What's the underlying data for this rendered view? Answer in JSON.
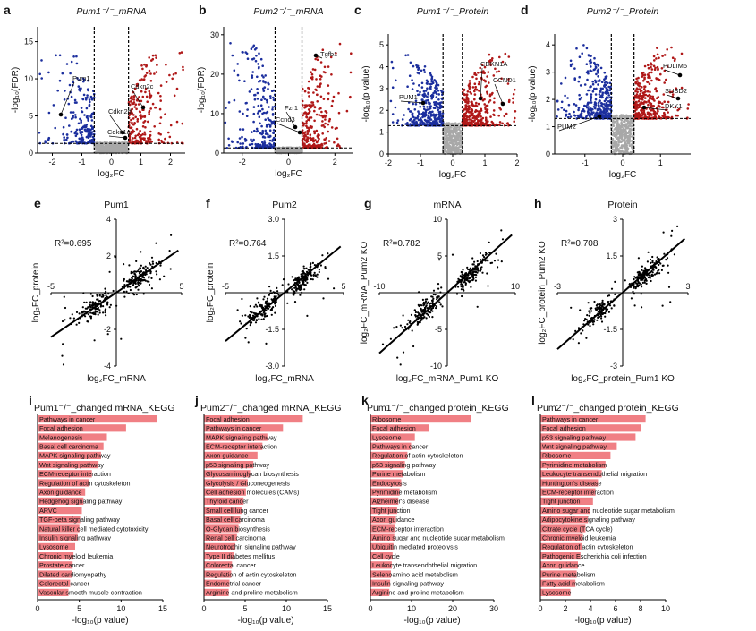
{
  "colors": {
    "up": "#b01818",
    "down": "#1c2f9e",
    "ns": "#a8a8a8",
    "bar": "#f07f84",
    "point": "#000000"
  },
  "volcano_panels": [
    {
      "letter": "a",
      "title": "Pum1⁻/⁻_mRNA",
      "xlabel": "log₂FC",
      "ylabel": "-log₁₀(FDR)",
      "xticks": [
        "-2",
        "-1",
        "0",
        "1",
        "2"
      ],
      "yticks": [
        "0",
        "5",
        "10",
        "15"
      ],
      "annotations": [
        {
          "text": "Pum1"
        },
        {
          "text": "Cdkn2d"
        },
        {
          "text": "Cdkn1a"
        },
        {
          "text": "Cdkn2c"
        }
      ]
    },
    {
      "letter": "b",
      "title": "Pum2⁻/⁻_mRNA",
      "xlabel": "log₂FC",
      "ylabel": "-log₁₀(FDR)",
      "xticks": [
        "-2",
        "0",
        "2"
      ],
      "yticks": [
        "0",
        "10",
        "20",
        "30"
      ],
      "annotations": [
        {
          "text": "Tgfb1"
        },
        {
          "text": "Fzr1"
        },
        {
          "text": "Ccnd3"
        }
      ]
    },
    {
      "letter": "c",
      "title": "Pum1⁻/⁻_Protein",
      "xlabel": "log₂FC",
      "ylabel": "-log₁₀(p value)",
      "xticks": [
        "-2",
        "-1",
        "0",
        "1",
        "2"
      ],
      "yticks": [
        "0",
        "1",
        "2",
        "3",
        "4",
        "5"
      ],
      "annotations": [
        {
          "text": "PUM1"
        },
        {
          "text": "CDKN1A"
        },
        {
          "text": "CCND1"
        }
      ]
    },
    {
      "letter": "d",
      "title": "Pum2⁻/⁻_Protein",
      "xlabel": "log₂FC",
      "ylabel": "-log₁₀(p value)",
      "xticks": [
        "-1",
        "0",
        "1"
      ],
      "yticks": [
        "0",
        "1",
        "2",
        "3",
        "4"
      ],
      "annotations": [
        {
          "text": "PDLIM5"
        },
        {
          "text": "SUSD2"
        },
        {
          "text": "DKK1"
        },
        {
          "text": "PUM2"
        }
      ]
    }
  ],
  "scatter_panels": [
    {
      "letter": "e",
      "title": "Pum1",
      "r2_text": "R²=0.695",
      "xlabel": "log₂FC_mRNA",
      "ylabel": "log₂FC_protein",
      "xmin": "-5",
      "xmax": "5",
      "ymax": "4",
      "ymid": "2",
      "ymidn": "-2",
      "ymin": "-4"
    },
    {
      "letter": "f",
      "title": "Pum2",
      "r2_text": "R²=0.764",
      "xlabel": "log₂FC_mRNA",
      "ylabel": "log₂FC_protein",
      "xmin": "-5",
      "xmax": "5",
      "ymax": "3.0",
      "ymid": "1.5",
      "ymidn": "-1.5",
      "ymin": "-3.0"
    },
    {
      "letter": "g",
      "title": "mRNA",
      "r2_text": "R²=0.782",
      "xlabel": "log₂FC_mRNA_Pum1 KO",
      "ylabel": "log₂FC_mRNA_Pum2 KO",
      "xmin": "-10",
      "xmax": "10",
      "ymax": "10",
      "ymid": "5",
      "ymidn": "-5",
      "ymin": "-10"
    },
    {
      "letter": "h",
      "title": "Protein",
      "r2_text": "R²=0.708",
      "xlabel": "log₂FC_protein_Pum1 KO",
      "ylabel": "log₂FC_protein_Pum2 KO",
      "xmin": "-3",
      "xmax": "3",
      "ymax": "3",
      "ymid": "1.5",
      "ymidn": "-1.5",
      "ymin": "-3"
    }
  ],
  "chart_data": [
    {
      "type": "bar",
      "panel": "i",
      "title": "Pum1⁻/⁻_changed mRNA_KEGG",
      "xlabel": "-log₁₀(p value)",
      "xlim": [
        0,
        15
      ],
      "xticks": [
        "0",
        "5",
        "10",
        "15"
      ],
      "categories": [
        "Pathways in cancer",
        "Focal adhesion",
        "Melanogenesis",
        "Basal cell carcinoma",
        "MAPK signaling pathway",
        "Wnt signaling pathway",
        "ECM-receptor interaction",
        "Regulation of actin cytoskeleton",
        "Axon guidance",
        "Hedgehog signaling pathway",
        "ARVC",
        "TGF-beta signaling pathway",
        "Natural killer cell mediated cytotoxicity",
        "Insulin signaling pathway",
        "Lysosome",
        "Chronic myeloid leukemia",
        "Prostate cancer",
        "Dilated cardiomyopathy",
        "Colorectal cancer",
        "Vascular smooth muscle contraction"
      ],
      "values": [
        14.3,
        10.6,
        8.3,
        7.9,
        7.6,
        7.3,
        6.5,
        6.2,
        5.7,
        5.5,
        5.3,
        5.1,
        5.0,
        4.8,
        4.5,
        4.3,
        4.2,
        4.1,
        3.9,
        3.7
      ]
    },
    {
      "type": "bar",
      "panel": "j",
      "title": "Pum2⁻/⁻_changed mRNA_KEGG",
      "xlabel": "-log₁₀(p value)",
      "xlim": [
        0,
        15
      ],
      "xticks": [
        "0",
        "5",
        "10",
        "15"
      ],
      "categories": [
        "Focal adhesion",
        "Pathways in cancer",
        "MAPK signaling pathway",
        "ECM-receptor interaction",
        "Axon guidance",
        "p53 signaling pathway",
        "Glycosaminoglycan biosynthesis",
        "Glycolysis / Gluconeogenesis",
        "Cell adhesion molecules (CAMs)",
        "Thyroid cancer",
        "Small cell lung cancer",
        "Basal cell carcinoma",
        "O-Glycan biosynthesis",
        "Renal cell carcinoma",
        "Neurotrophin signaling pathway",
        "Type II diabetes mellitus",
        "Colorectal cancer",
        "Regulation of actin cytoskeleton",
        "Endometrial cancer",
        "Arginine and proline metabolism"
      ],
      "values": [
        12.0,
        9.6,
        7.7,
        7.1,
        6.5,
        6.0,
        5.6,
        5.3,
        5.1,
        4.8,
        4.6,
        4.4,
        4.2,
        4.0,
        3.8,
        3.6,
        3.4,
        3.3,
        3.1,
        3.0
      ]
    },
    {
      "type": "bar",
      "panel": "k",
      "title": "Pum1⁻/⁻_changed protein_KEGG",
      "xlabel": "-log₁₀(p value)",
      "xlim": [
        0,
        30
      ],
      "xticks": [
        "0",
        "10",
        "20",
        "30"
      ],
      "categories": [
        "Ribosome",
        "Focal adhesion",
        "Lysosome",
        "Pathways in cancer",
        "Regulation of actin cytoskeleton",
        "p53 signaling pathway",
        "Purine metabolism",
        "Endocytosis",
        "Pyrimidine metabolism",
        "Alzheimer's disease",
        "Tight junction",
        "Axon guidance",
        "ECM-receptor interaction",
        "Amino sugar and nucleotide sugar metabolism",
        "Ubiquitin mediated proteolysis",
        "Cell cycle",
        "Leukocyte transendothelial migration",
        "Selenoamino acid metabolism",
        "Insulin signaling pathway",
        "Arginine and proline metabolism"
      ],
      "values": [
        24.5,
        14.2,
        10.8,
        9.9,
        9.0,
        8.4,
        7.9,
        7.5,
        7.1,
        6.8,
        6.5,
        6.2,
        6.0,
        5.8,
        5.6,
        5.4,
        5.2,
        5.0,
        4.8,
        4.6
      ]
    },
    {
      "type": "bar",
      "panel": "l",
      "title": "Pum2⁻/⁻_changed protein_KEGG",
      "xlabel": "-log₁₀(p value)",
      "xlim": [
        0,
        10
      ],
      "xticks": [
        "0",
        "2",
        "4",
        "6",
        "8",
        "10"
      ],
      "categories": [
        "Pathways in cancer",
        "Focal adhesion",
        "p53 signaling pathway",
        "Wnt signaling pathway",
        "Ribosome",
        "Pyrimidine metabolism",
        "Leukocyte transendothelial migration",
        "Huntington's disease",
        "ECM-receptor interaction",
        "Tight junction",
        "Amino sugar and nucleotide sugar metabolism",
        "Adipocytokine signaling pathway",
        "Citrate cycle (TCA cycle)",
        "Chronic myeloid leukemia",
        "Regulation of actin cytoskeleton",
        "Pathogenic Escherichia coli infection",
        "Axon guidance",
        "Purine metabolism",
        "Fatty acid metabolism",
        "Lysosome"
      ],
      "values": [
        8.4,
        8.0,
        7.6,
        6.1,
        5.6,
        5.2,
        4.9,
        4.6,
        4.4,
        4.2,
        4.0,
        3.8,
        3.6,
        3.4,
        3.3,
        3.2,
        3.0,
        2.9,
        2.8,
        2.4
      ]
    }
  ]
}
